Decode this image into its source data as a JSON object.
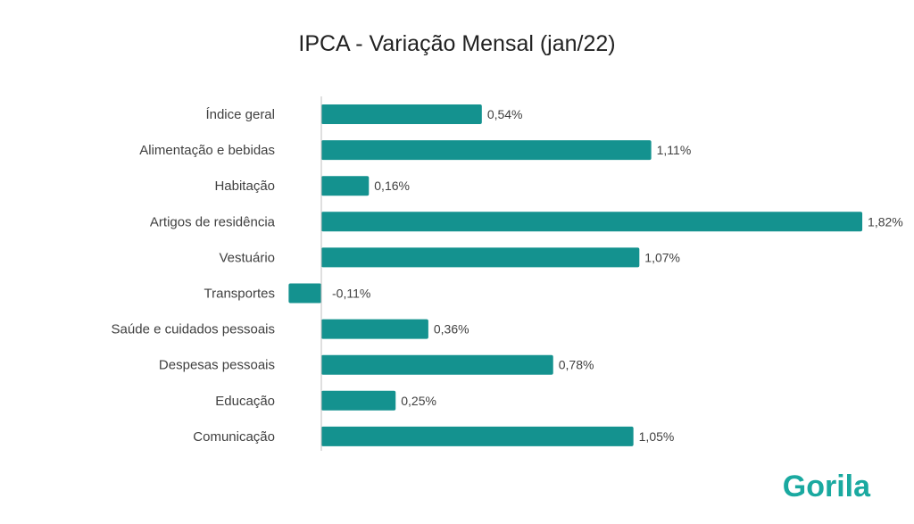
{
  "chart_data": {
    "type": "bar",
    "orientation": "horizontal",
    "title": "IPCA - Variação Mensal (jan/22)",
    "xlabel": "",
    "ylabel": "",
    "grid": false,
    "legend": "none",
    "categories": [
      "Índice geral",
      "Alimentação e bebidas",
      "Habitação",
      "Artigos de residência",
      "Vestuário",
      "Transportes",
      "Saúde e cuidados pessoais",
      "Despesas pessoais",
      "Educação",
      "Comunicação"
    ],
    "values": [
      0.54,
      1.11,
      0.16,
      1.82,
      1.07,
      -0.11,
      0.36,
      0.78,
      0.25,
      1.05
    ],
    "data_labels": [
      "0,54%",
      "1,11%",
      "0,16%",
      "1,82%",
      "1,07%",
      "-0,11%",
      "0,36%",
      "0,78%",
      "0,25%",
      "1,05%"
    ],
    "xlim": [
      -0.11,
      1.82
    ]
  },
  "colors": {
    "bar": "#14928f",
    "axis": "#bfbfbf",
    "logo": "#1aa9a0"
  },
  "brand": {
    "logo_text": "Gorila"
  }
}
